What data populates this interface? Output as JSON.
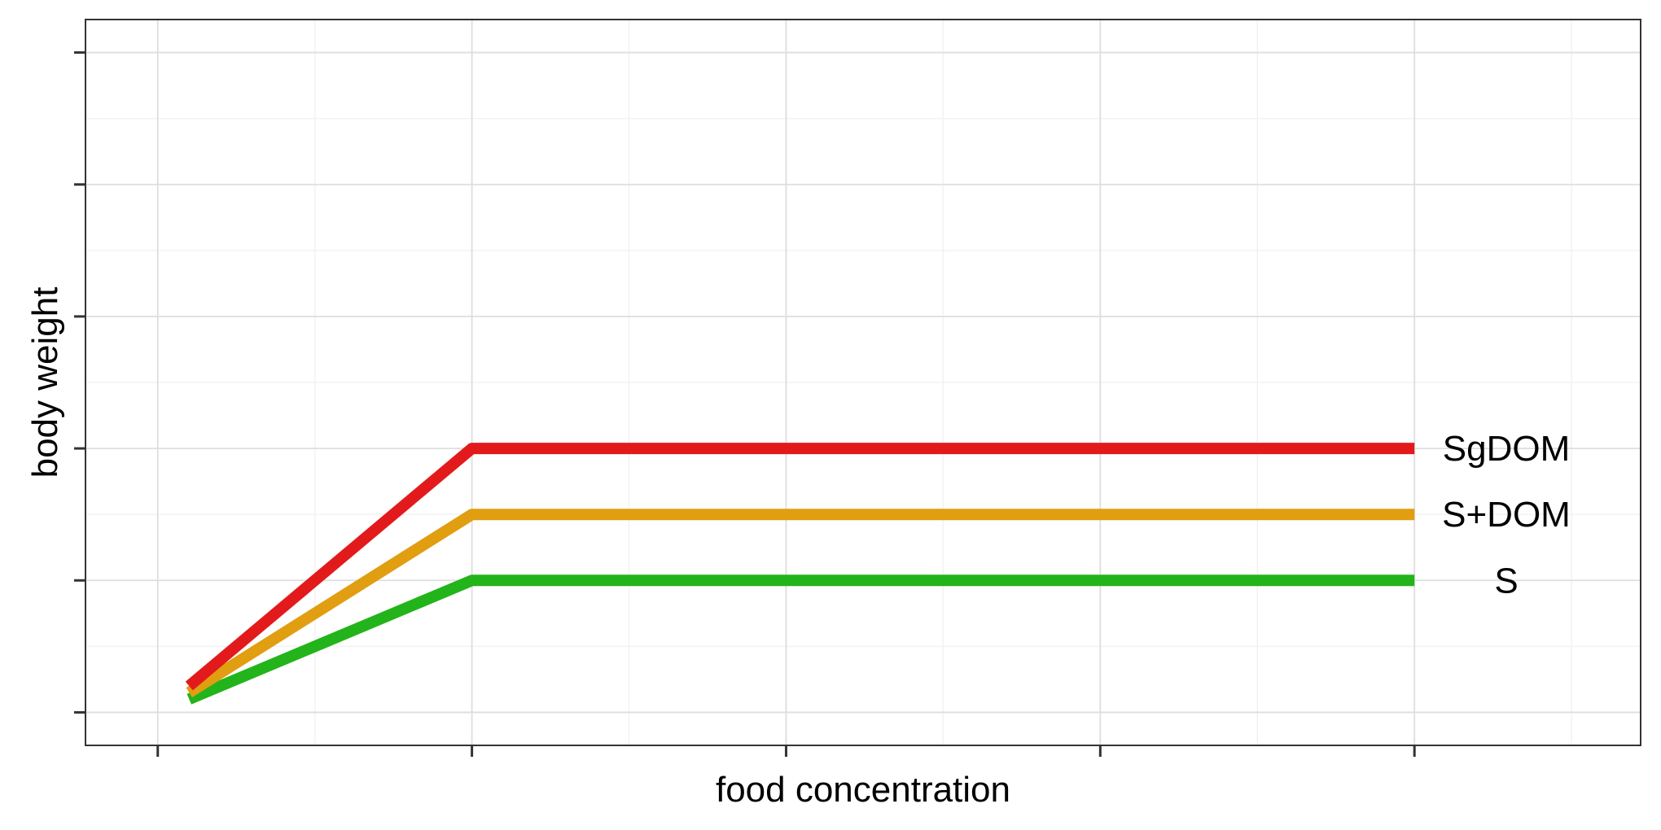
{
  "chart_data": {
    "type": "line",
    "title": "",
    "xlabel": "food concentration",
    "ylabel": "body weight",
    "xlim": [
      0.27,
      5.22
    ],
    "ylim": [
      0.75,
      6.25
    ],
    "x_major_ticks": [
      0.5,
      1.5,
      2.5,
      3.5,
      4.5
    ],
    "x_minor_ticks": [
      1,
      2,
      3,
      4,
      5
    ],
    "y_major_ticks": [
      1,
      2,
      3,
      4,
      5,
      6
    ],
    "y_minor_ticks": [
      1.5,
      2.5,
      3.5,
      4.5,
      5.5
    ],
    "tick_labels_shown": false,
    "grid": true,
    "legend": "none (direct labels at line ends)",
    "series": [
      {
        "name": "SgDOM",
        "color": "#E31A1C",
        "x": [
          0.6,
          1.5,
          4.5
        ],
        "y": [
          1.2,
          3,
          3
        ]
      },
      {
        "name": "S+DOM",
        "color": "#E09E10",
        "x": [
          0.6,
          1.5,
          4.5
        ],
        "y": [
          1.15,
          2.5,
          2.5
        ]
      },
      {
        "name": "S",
        "color": "#22B41A",
        "x": [
          0.6,
          1.5,
          4.5
        ],
        "y": [
          1.1,
          2,
          2
        ]
      }
    ]
  }
}
